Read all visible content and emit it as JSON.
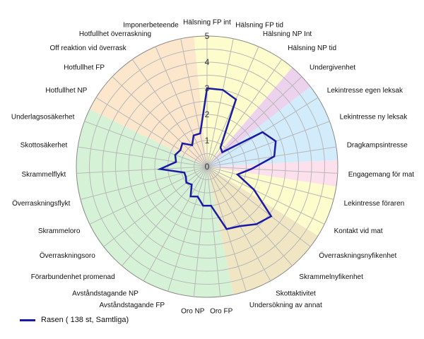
{
  "chart_data": {
    "type": "radar",
    "title": "",
    "rmax": 5,
    "ticks": [
      0,
      1,
      2,
      3,
      4,
      5
    ],
    "categories": [
      "Hälsning FP int",
      "Hälsning FP tid",
      "Hälsning NP Int",
      "Hälsning NP tid",
      "Undergivenhet",
      "Lekintresse egen leksak",
      "Lekintresse ny leksak",
      "Dragkampsintresse",
      "Engagemang för mat",
      "Lekintresse föraren",
      "Kontakt vid mat",
      "Överraskningsnyfikenhet",
      "Skrammelnyfikenhet",
      "Skottaktivitet",
      "Undersökning av annat",
      "Oro FP",
      "Oro NP",
      "Avståndstagande FP",
      "Avståndstagande NP",
      "Förarbundenhet promenad",
      "Överraskningsoro",
      "Skrammeloro",
      "Överraskningsflykt",
      "Skrammelflykt",
      "Skottosäkerhet",
      "Underlagsosäkerhet",
      "Hotfullhet NP",
      "Hotfullhet FP",
      "Off reaktion vid överrask",
      "Hotfullhet överraskning",
      "Imponerbeteende"
    ],
    "sectors": [
      {
        "from": 0,
        "to": 3,
        "color": "#fcfccc"
      },
      {
        "from": 4,
        "to": 4,
        "color": "#ecd2ec"
      },
      {
        "from": 5,
        "to": 7,
        "color": "#d2ecfc"
      },
      {
        "from": 8,
        "to": 8,
        "color": "#fce0ec"
      },
      {
        "from": 9,
        "to": 10,
        "color": "#fcfccc"
      },
      {
        "from": 11,
        "to": 14,
        "color": "#f0e6c4"
      },
      {
        "from": 15,
        "to": 25,
        "color": "#d6f2d6"
      },
      {
        "from": 26,
        "to": 30,
        "color": "#fce6cc"
      }
    ],
    "series": [
      {
        "name": "Rasen ( 138 st, Samtliga)",
        "color": "#1a1aa6",
        "values": [
          3.0,
          3.0,
          2.8,
          0.9,
          0.8,
          2.5,
          2.8,
          2.6,
          1.7,
          1.2,
          2.0,
          3.1,
          2.9,
          2.6,
          2.5,
          1.5,
          1.5,
          1.2,
          1.3,
          0.9,
          1.0,
          0.9,
          0.9,
          1.8,
          1.2,
          1.3,
          1.2,
          1.3,
          1.0,
          1.3,
          1.3
        ]
      }
    ]
  },
  "legend": {
    "label": "Rasen ( 138 st, Samtliga)",
    "color": "#1a1aa6"
  }
}
